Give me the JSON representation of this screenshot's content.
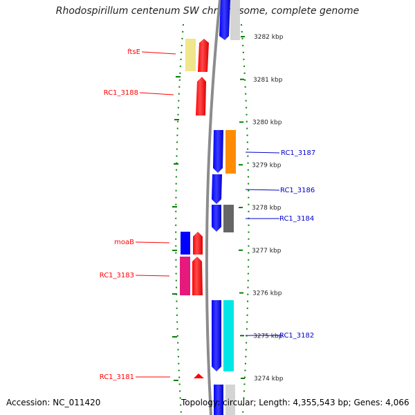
{
  "title": "Rhodospirillum centenum SW chromosome, complete genome",
  "footer": {
    "accession": "Accession: NC_011420",
    "topology": "Topology: circular; Length: 4,355,543 bp; Genes: 4,066"
  },
  "ticks": [
    {
      "label": "3282 kbp",
      "kbp": 3282
    },
    {
      "label": "3281 kbp",
      "kbp": 3281
    },
    {
      "label": "3280 kbp",
      "kbp": 3280
    },
    {
      "label": "3279 kbp",
      "kbp": 3279
    },
    {
      "label": "3278 kbp",
      "kbp": 3278
    },
    {
      "label": "3277 kbp",
      "kbp": 3277
    },
    {
      "label": "3276 kbp",
      "kbp": 3276
    },
    {
      "label": "3275 kbp",
      "kbp": 3275
    },
    {
      "label": "3274 kbp",
      "kbp": 3274
    }
  ],
  "genes_left": [
    {
      "label": "ftsE",
      "color": "#ff0000"
    },
    {
      "label": "RC1_3188",
      "color": "#ff0000"
    },
    {
      "label": "moaB",
      "color": "#ff0000"
    },
    {
      "label": "RC1_3183",
      "color": "#ff0000"
    },
    {
      "label": "RC1_3181",
      "color": "#ff0000"
    }
  ],
  "genes_right": [
    {
      "label": "RC1_3187",
      "color": "#0000cc"
    },
    {
      "label": "RC1_3186",
      "color": "#0000cc"
    },
    {
      "label": "RC1_3184",
      "color": "#0000cc"
    },
    {
      "label": "RC1_3182",
      "color": "#0000cc"
    }
  ],
  "colors": {
    "forward_strand": "#ff0000",
    "reverse_strand": "#0000ff",
    "backbone": "#808080",
    "tick": "#008000",
    "cog_yellow": "#f0e68c",
    "cog_orange": "#ff8c00",
    "cog_grey": "#666666",
    "cog_pink": "#e6197d",
    "cog_cyan": "#00e6e6"
  }
}
